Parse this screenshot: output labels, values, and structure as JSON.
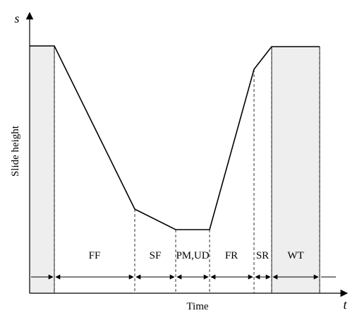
{
  "axes": {
    "y_symbol": "s",
    "x_symbol": "t",
    "y_label": "Slide height",
    "x_label": "Time"
  },
  "phases": [
    "FF",
    "SF",
    "PM,UD",
    "FR",
    "SR",
    "WT"
  ],
  "profile": {
    "shaded_regions": [
      "initial-dwell",
      "WT"
    ],
    "colors": {
      "line": "#000000",
      "shade": "#eeeeee"
    }
  }
}
